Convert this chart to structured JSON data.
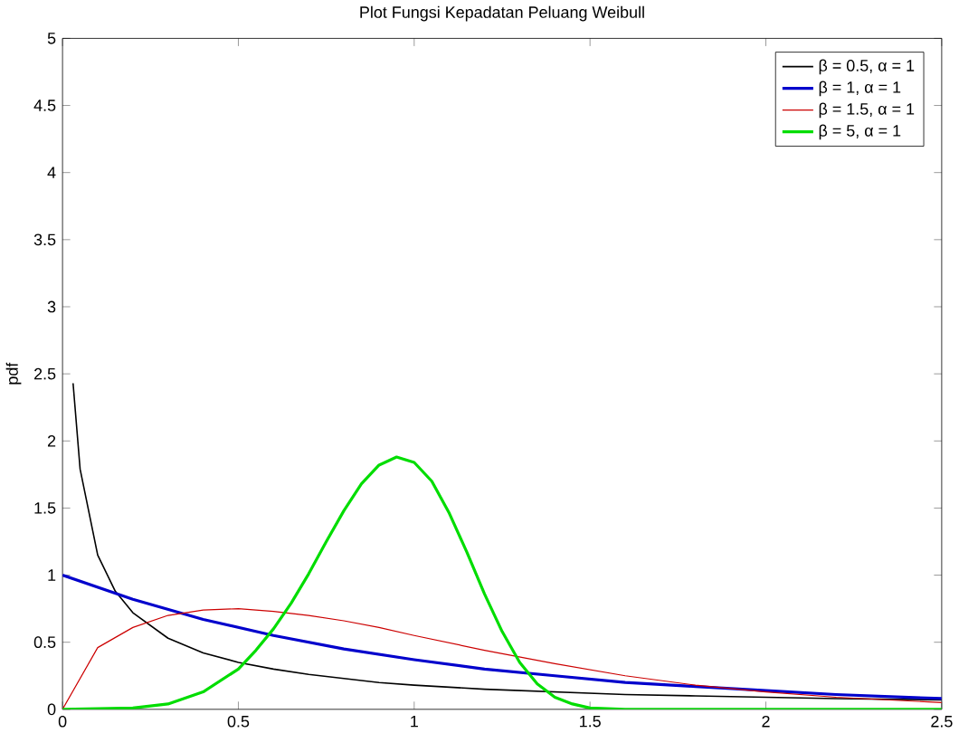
{
  "chart_data": {
    "type": "line",
    "title": "Plot Fungsi Kepadatan Peluang Weibull",
    "ylabel": "pdf",
    "xlim": [
      0,
      2.5
    ],
    "ylim": [
      0,
      5
    ],
    "xticks": [
      0,
      0.5,
      1,
      1.5,
      2,
      2.5
    ],
    "yticks": [
      0,
      0.5,
      1,
      1.5,
      2,
      2.5,
      3,
      3.5,
      4,
      4.5,
      5
    ],
    "grid": false,
    "legend": "top right",
    "marker": "none",
    "line_style": "solid",
    "series": [
      {
        "name": "β = 0.5, α = 1",
        "color": "#000000",
        "x": [
          0.03,
          0.05,
          0.1,
          0.15,
          0.2,
          0.3,
          0.4,
          0.5,
          0.6,
          0.7,
          0.8,
          0.9,
          1,
          1.2,
          1.4,
          1.6,
          1.8,
          2,
          2.2,
          2.5
        ],
        "values": [
          2.43,
          1.79,
          1.15,
          0.88,
          0.72,
          0.53,
          0.42,
          0.35,
          0.3,
          0.26,
          0.23,
          0.2,
          0.18,
          0.15,
          0.13,
          0.11,
          0.1,
          0.09,
          0.08,
          0.07
        ]
      },
      {
        "name": "β = 1, α = 1",
        "color": "#0000cc",
        "x": [
          0,
          0.2,
          0.4,
          0.6,
          0.8,
          1,
          1.2,
          1.4,
          1.6,
          1.8,
          2,
          2.2,
          2.5
        ],
        "values": [
          1,
          0.82,
          0.67,
          0.55,
          0.45,
          0.37,
          0.3,
          0.25,
          0.2,
          0.17,
          0.14,
          0.11,
          0.08
        ]
      },
      {
        "name": "β = 1.5, α = 1",
        "color": "#cc0000",
        "x": [
          0,
          0.1,
          0.2,
          0.3,
          0.4,
          0.5,
          0.6,
          0.7,
          0.8,
          0.9,
          1,
          1.2,
          1.4,
          1.6,
          1.8,
          2,
          2.2,
          2.5
        ],
        "values": [
          0,
          0.46,
          0.61,
          0.7,
          0.74,
          0.75,
          0.73,
          0.7,
          0.66,
          0.61,
          0.55,
          0.44,
          0.34,
          0.25,
          0.18,
          0.13,
          0.09,
          0.05
        ]
      },
      {
        "name": "β = 5, α = 1",
        "color": "#00dd00",
        "x": [
          0,
          0.2,
          0.3,
          0.4,
          0.5,
          0.55,
          0.6,
          0.65,
          0.7,
          0.75,
          0.8,
          0.85,
          0.9,
          0.95,
          1,
          1.05,
          1.1,
          1.15,
          1.2,
          1.25,
          1.3,
          1.35,
          1.4,
          1.45,
          1.5,
          1.6,
          2,
          2.5
        ],
        "values": [
          0,
          0.01,
          0.04,
          0.13,
          0.3,
          0.44,
          0.6,
          0.79,
          1.01,
          1.25,
          1.48,
          1.68,
          1.82,
          1.88,
          1.84,
          1.7,
          1.46,
          1.17,
          0.86,
          0.58,
          0.35,
          0.19,
          0.09,
          0.04,
          0.01,
          0,
          0,
          0
        ]
      }
    ]
  }
}
